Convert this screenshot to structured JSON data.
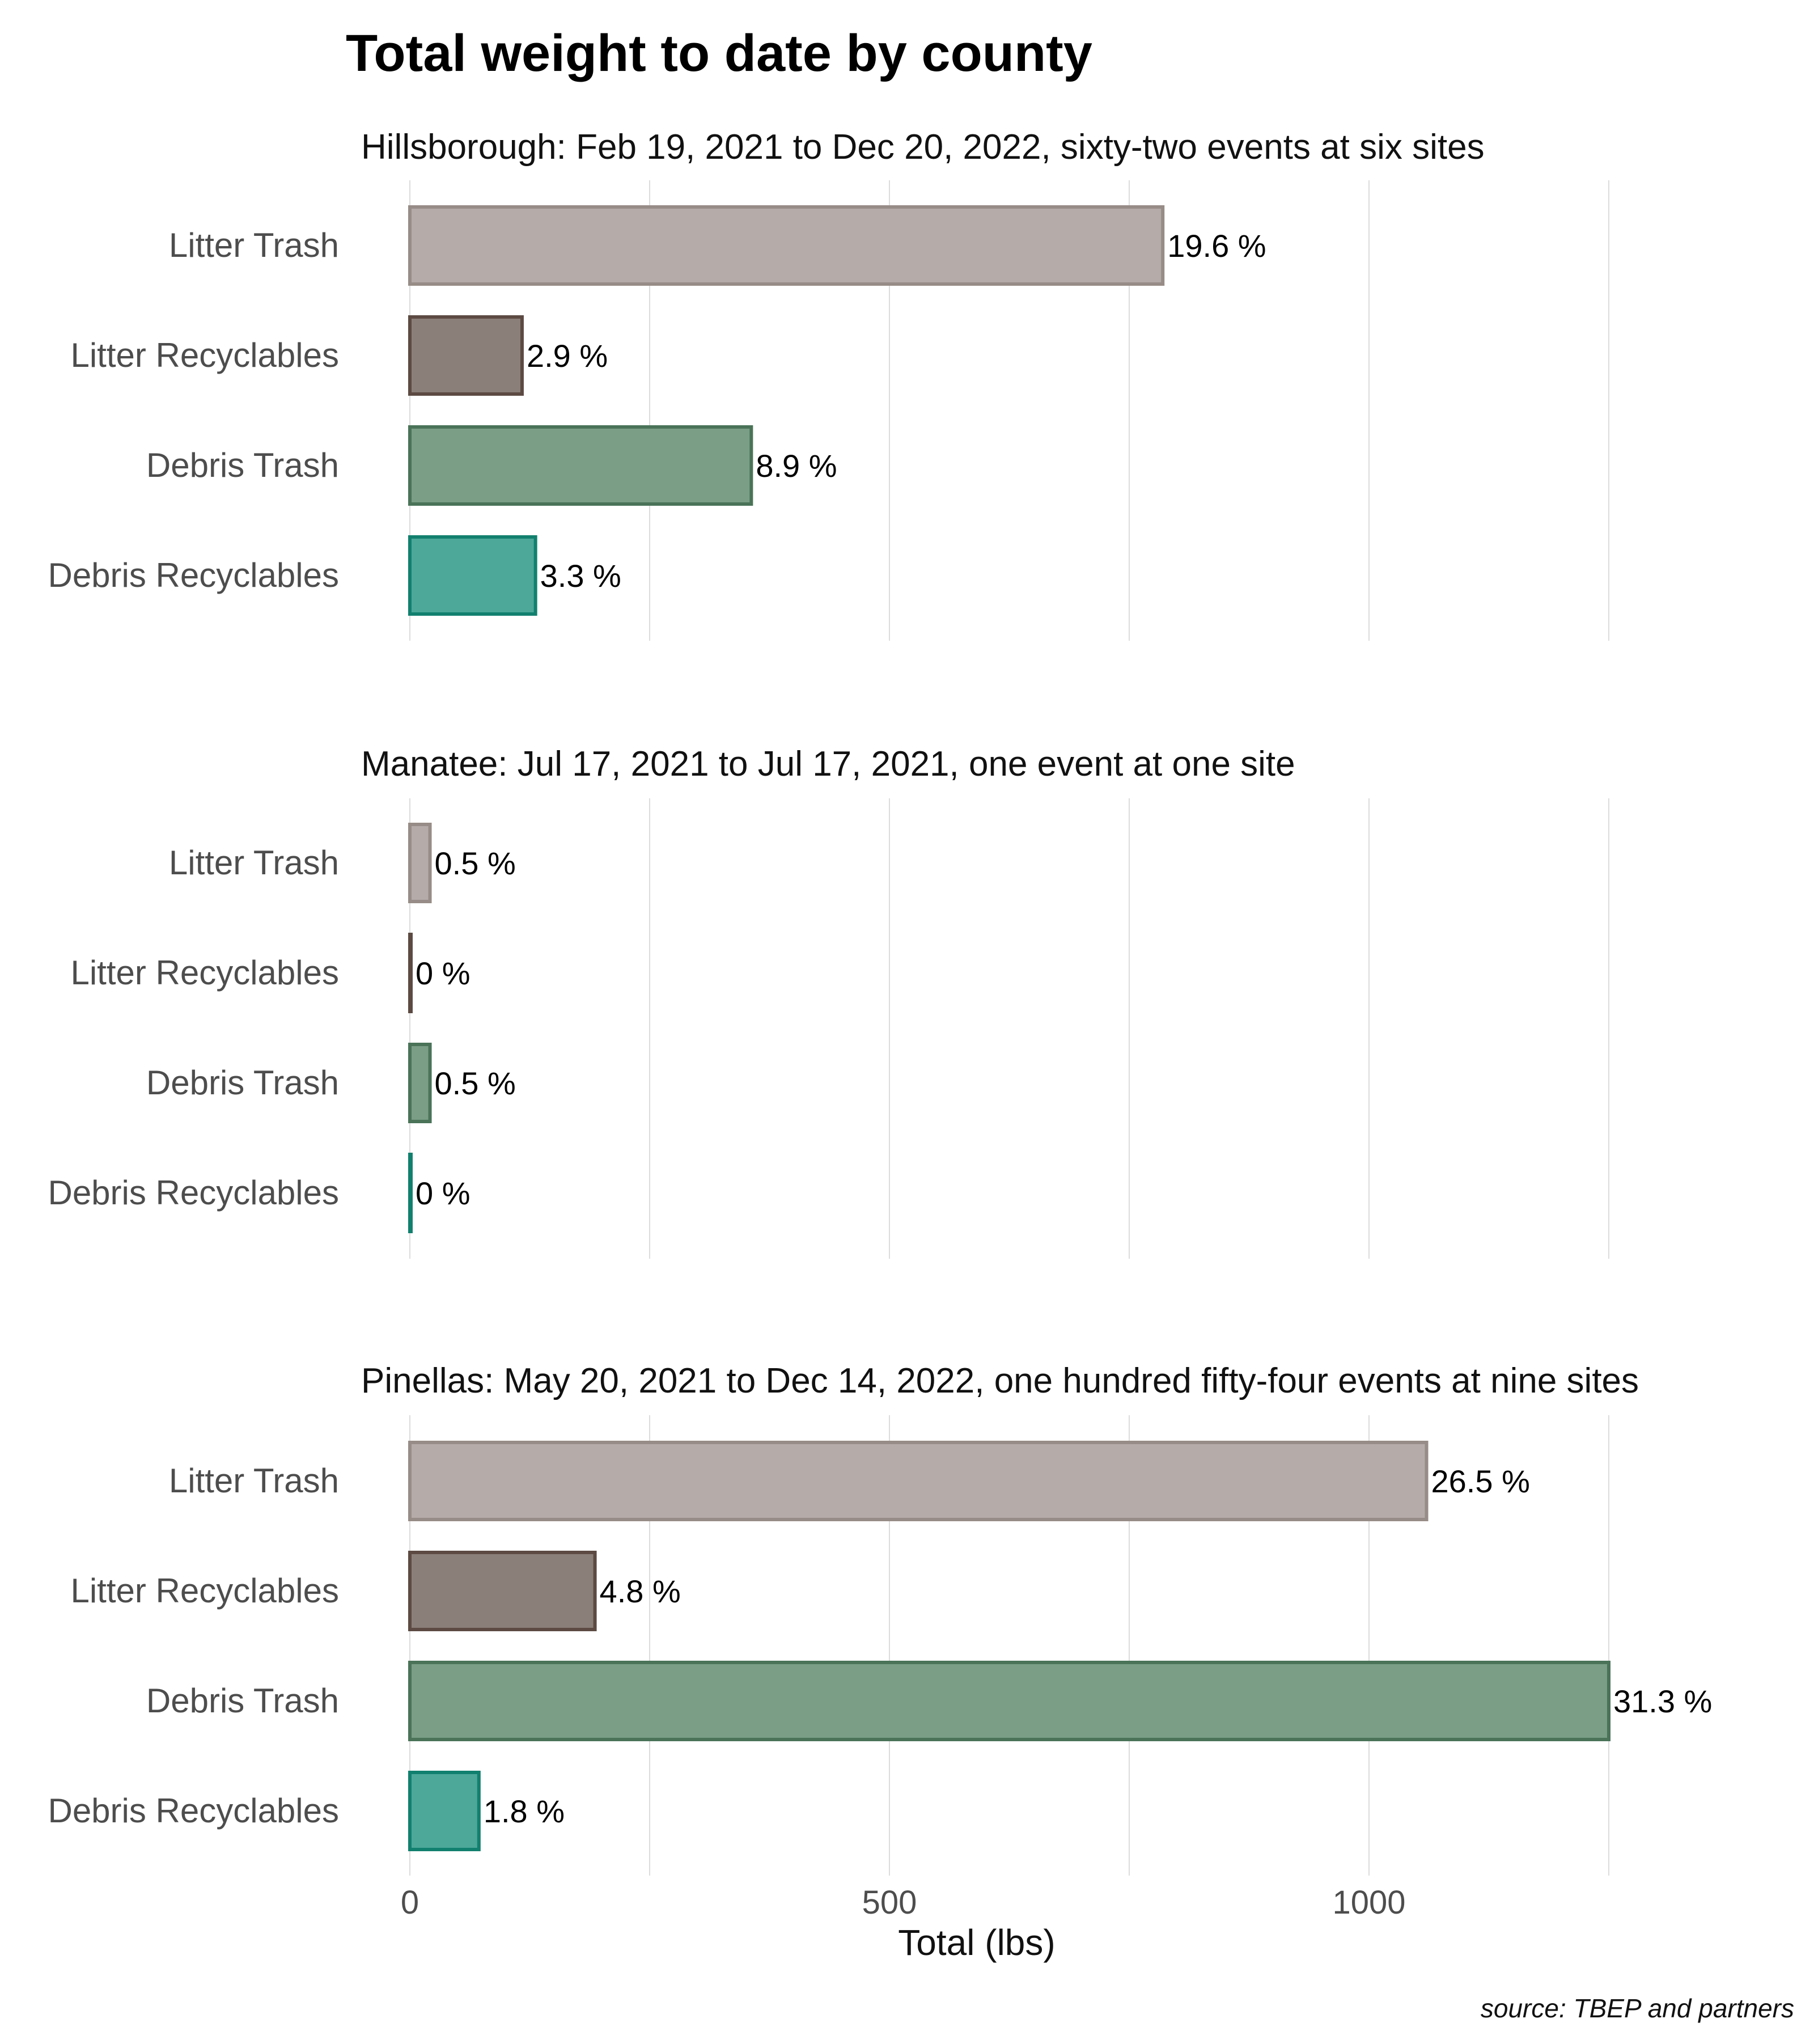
{
  "chart_data": {
    "type": "bar",
    "orientation": "horizontal",
    "title": "Total weight to date by county",
    "xlabel": "Total (lbs)",
    "caption": "source: TBEP and partners",
    "xlim": [
      0,
      1250
    ],
    "x_ticks": [
      0,
      500,
      1000
    ],
    "grid_values": [
      0,
      250,
      500,
      750,
      1000,
      1250
    ],
    "grid": true,
    "categories": [
      "Litter Trash",
      "Litter Recyclables",
      "Debris Trash",
      "Debris Recyclables"
    ],
    "colors": {
      "Litter Trash": {
        "fill": "#b5aba8",
        "stroke": "#978c87"
      },
      "Litter Recyclables": {
        "fill": "#8b7f79",
        "stroke": "#5c4a43"
      },
      "Debris Trash": {
        "fill": "#7a9e86",
        "stroke": "#4a7358"
      },
      "Debris Recyclables": {
        "fill": "#4da89a",
        "stroke": "#12806e"
      }
    },
    "panels": [
      {
        "title": "Hillsborough: Feb 19, 2021 to Dec 20, 2022, sixty-two events at six sites",
        "values": [
          785,
          117,
          356,
          131
        ],
        "labels": [
          "19.6 %",
          "2.9 %",
          "8.9 %",
          "3.3 %"
        ]
      },
      {
        "title": "Manatee: Jul 17, 2021 to Jul 17, 2021, one event at one site",
        "values": [
          21,
          1,
          21,
          1
        ],
        "labels": [
          "0.5 %",
          "0 %",
          "0.5 %",
          "0 %"
        ]
      },
      {
        "title": "Pinellas: May 20, 2021 to Dec 14, 2022, one hundred fifty-four events at nine sites",
        "values": [
          1060,
          193,
          1250,
          72
        ],
        "labels": [
          "26.5 %",
          "4.8 %",
          "31.3 %",
          "1.8 %"
        ]
      }
    ]
  }
}
